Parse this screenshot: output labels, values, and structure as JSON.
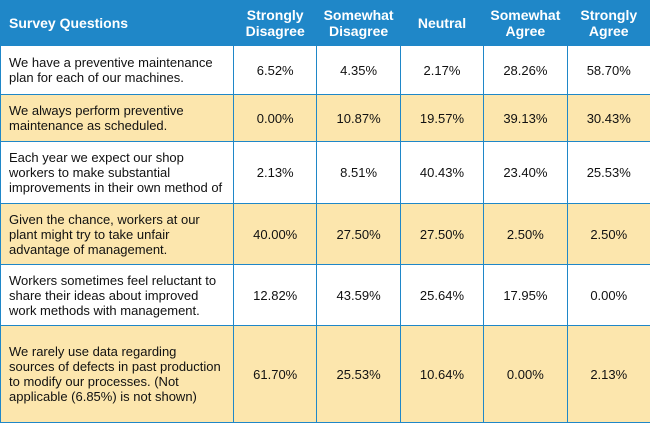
{
  "chart_data": {
    "type": "table",
    "columns": [
      "Survey Questions",
      "Strongly Disagree",
      "Somewhat Disagree",
      "Neutral",
      "Somewhat Agree",
      "Strongly Agree"
    ],
    "rows": [
      {
        "question": "We have a preventive maintenance plan for each of our machines.",
        "values": [
          "6.52%",
          "4.35%",
          "2.17%",
          "28.26%",
          "58.70%"
        ]
      },
      {
        "question": "We always perform preventive maintenance as scheduled.",
        "values": [
          "0.00%",
          "10.87%",
          "19.57%",
          "39.13%",
          "30.43%"
        ]
      },
      {
        "question": "Each year we expect our shop workers to make substantial improvements in their own method of",
        "values": [
          "2.13%",
          "8.51%",
          "40.43%",
          "23.40%",
          "25.53%"
        ]
      },
      {
        "question": "Given the chance, workers at our plant might try to take unfair advantage of management.",
        "values": [
          "40.00%",
          "27.50%",
          "27.50%",
          "2.50%",
          "2.50%"
        ]
      },
      {
        "question": "Workers sometimes feel reluctant to share their ideas about improved work methods with management.",
        "values": [
          "12.82%",
          "43.59%",
          "25.64%",
          "17.95%",
          "0.00%"
        ]
      },
      {
        "question": "We rarely use data regarding sources of defects in past production to modify our processes. (Not applicable (6.85%) is not shown)",
        "values": [
          "61.70%",
          "25.53%",
          "10.64%",
          "0.00%",
          "2.13%"
        ]
      }
    ],
    "colors": {
      "header_bg": "#1f87c8",
      "header_text": "#ffffff",
      "row_alt_bg": "#fce6ad",
      "row_bg": "#ffffff"
    }
  }
}
